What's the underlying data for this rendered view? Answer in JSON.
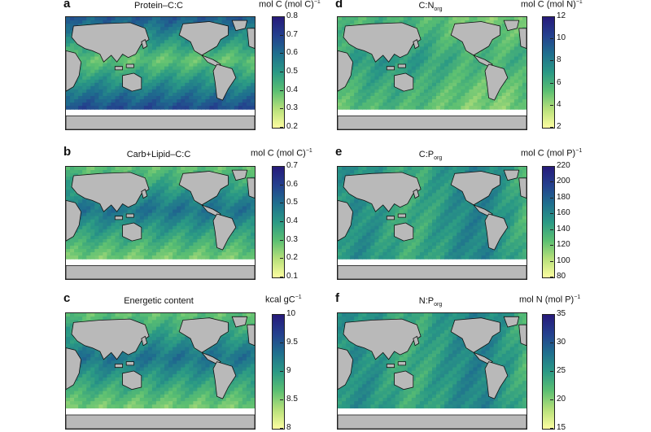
{
  "panels": [
    {
      "letter": "a",
      "title": "Protein–C:C",
      "sub": "",
      "units": "mol C (mol C)",
      "units_sup": "−1",
      "ticks": [
        "0.8",
        "0.7",
        "0.6",
        "0.5",
        "0.4",
        "0.3",
        "0.2"
      ],
      "theme": "high-lat"
    },
    {
      "letter": "d",
      "title": "C:N",
      "sub": "org",
      "units": "mol C (mol N)",
      "units_sup": "−1",
      "ticks": [
        "12",
        "10",
        "8",
        "6",
        "4",
        "2"
      ],
      "theme": "mid"
    },
    {
      "letter": "b",
      "title": "Carb+Lipid–C:C",
      "sub": "",
      "units": "mol C (mol C)",
      "units_sup": "−1",
      "ticks": [
        "0.7",
        "0.6",
        "0.5",
        "0.4",
        "0.3",
        "0.2",
        "0.1"
      ],
      "theme": "tropical"
    },
    {
      "letter": "e",
      "title": "C:P",
      "sub": "org",
      "units": "mol C (mol P)",
      "units_sup": "−1",
      "ticks": [
        "220",
        "200",
        "180",
        "160",
        "140",
        "120",
        "100",
        "80"
      ],
      "theme": "coastal"
    },
    {
      "letter": "c",
      "title": "Energetic content",
      "sub": "",
      "units": "kcal gC",
      "units_sup": "−1",
      "ticks": [
        "10",
        "9.5",
        "9",
        "8.5",
        "8"
      ],
      "theme": "tropical"
    },
    {
      "letter": "f",
      "title": "N:P",
      "sub": "org",
      "units": "mol N (mol P)",
      "units_sup": "−1",
      "ticks": [
        "35",
        "30",
        "25",
        "20",
        "15"
      ],
      "theme": "coastal"
    }
  ],
  "colormap": [
    "#fdfda0",
    "#b7e07a",
    "#5bbf72",
    "#2a9985",
    "#1f6f8e",
    "#24408e",
    "#261a7a"
  ]
}
